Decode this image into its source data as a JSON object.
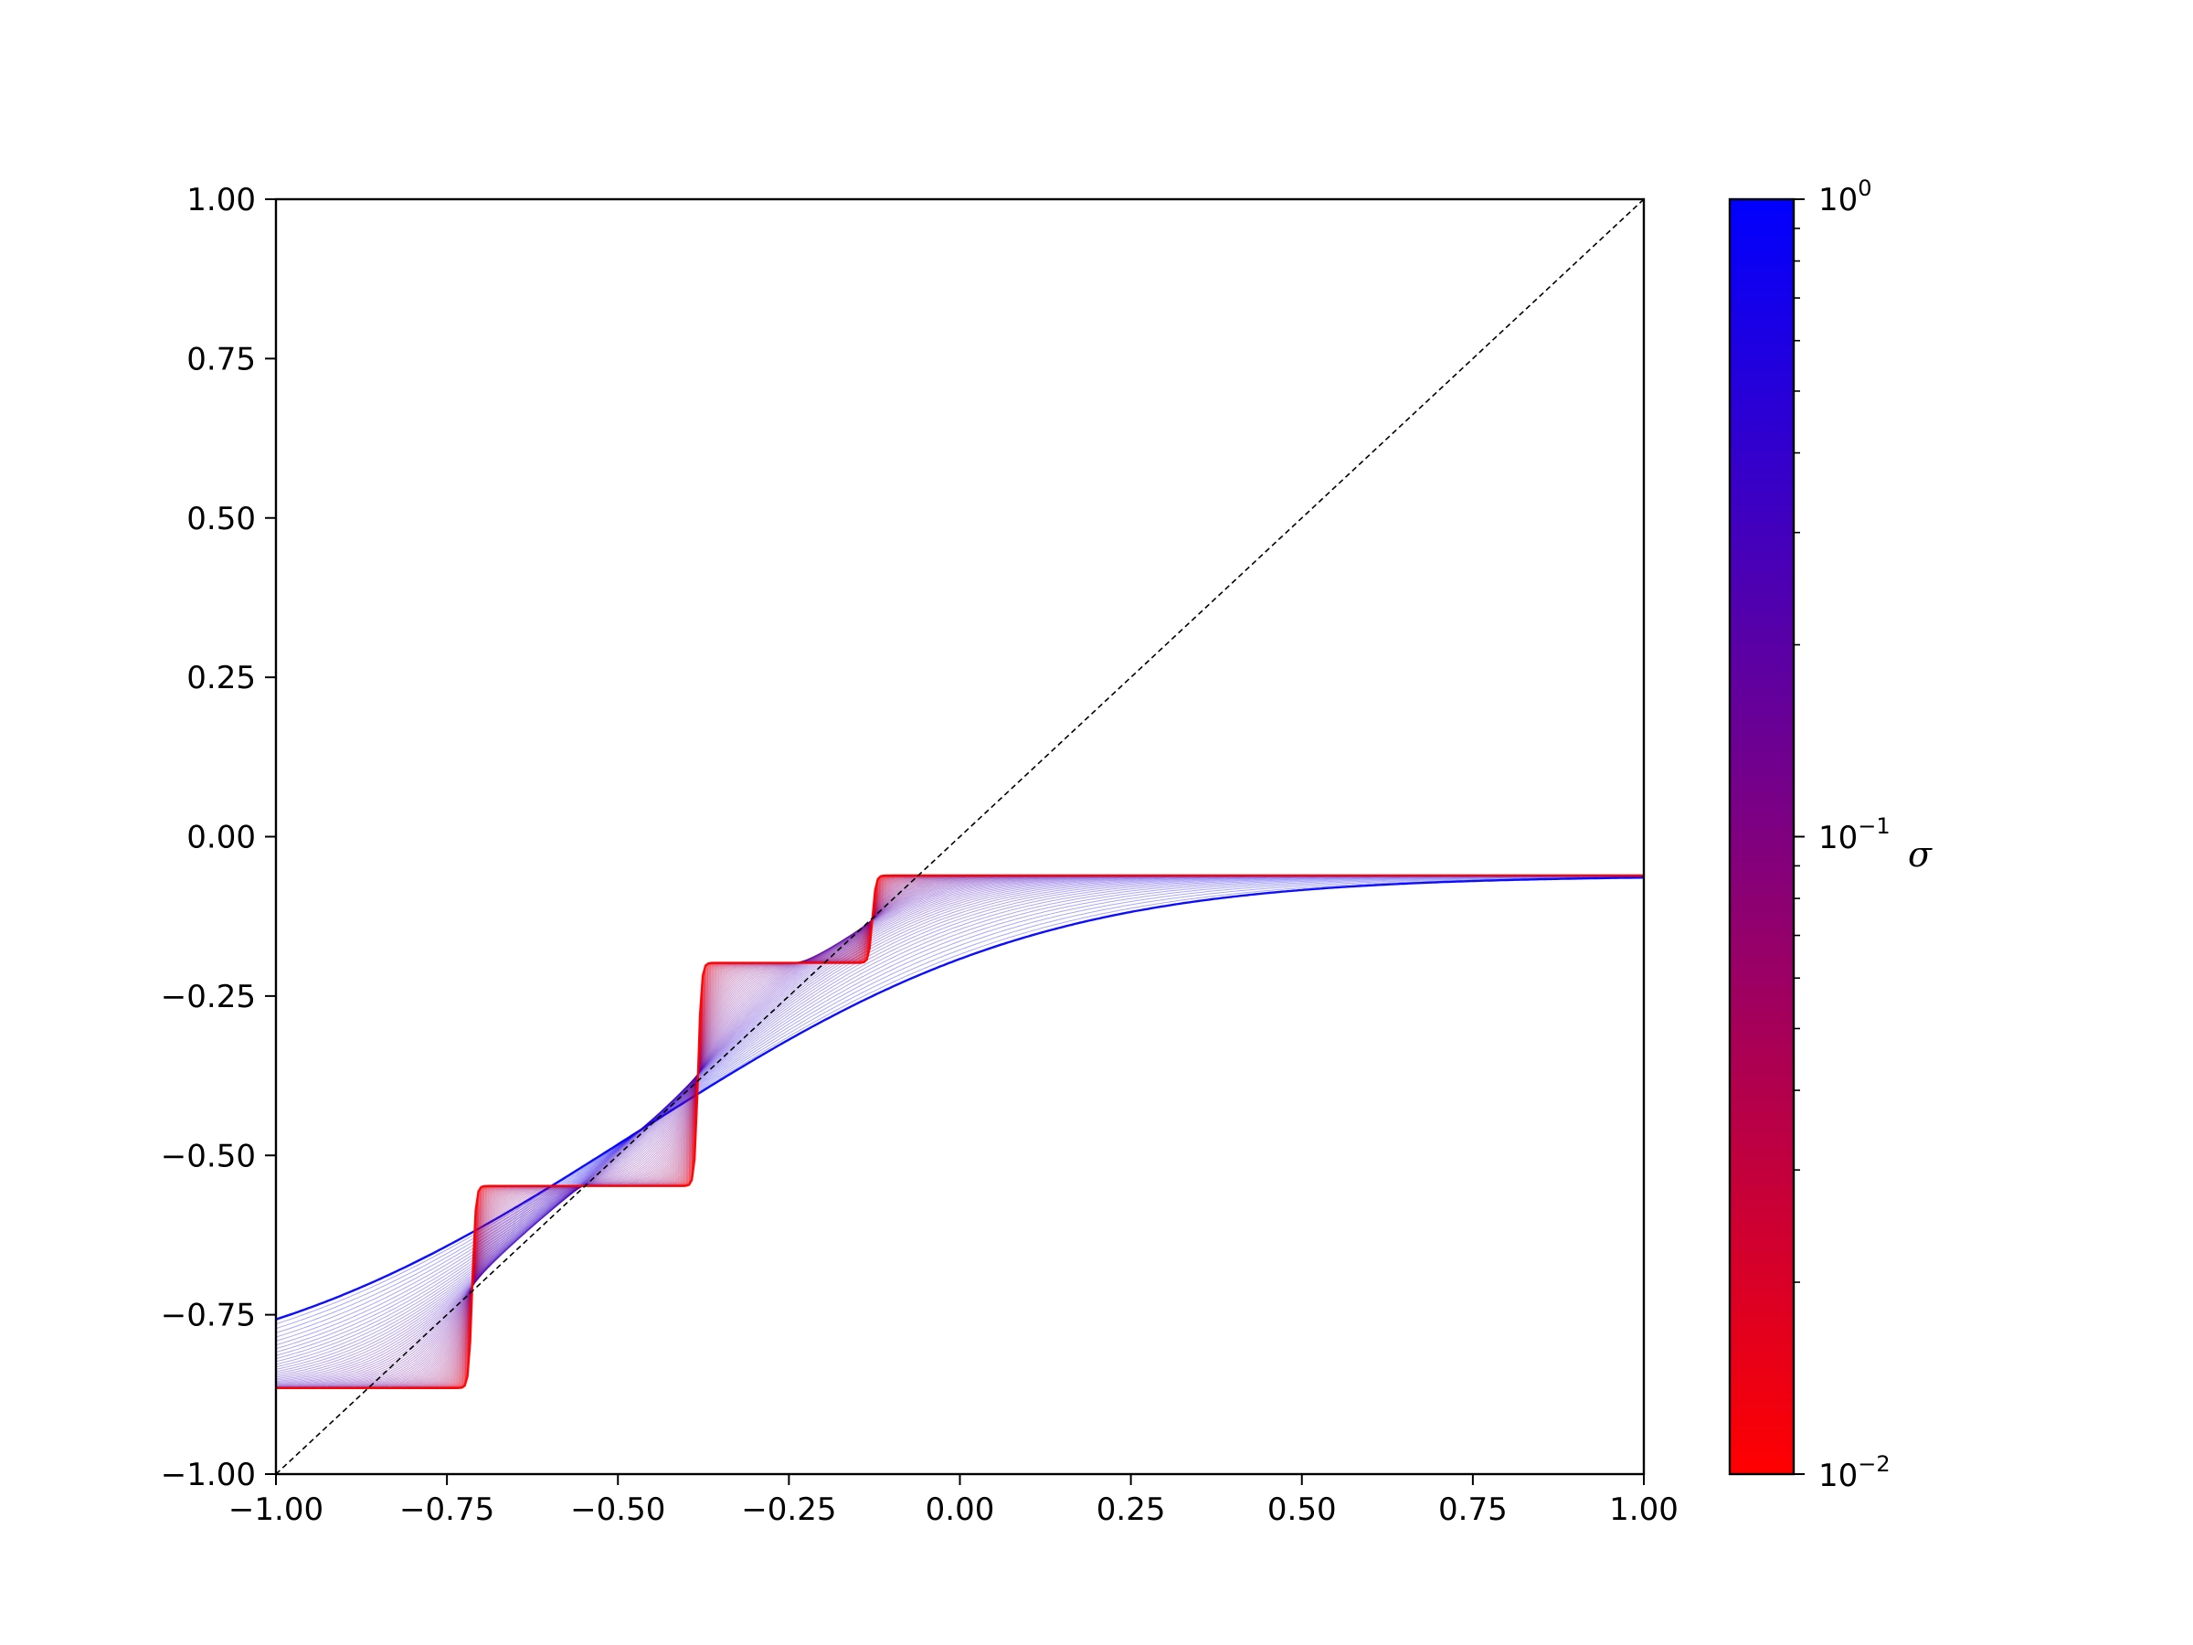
{
  "chart_data": {
    "type": "line",
    "xlim": [
      -1.0,
      1.0
    ],
    "ylim": [
      -1.0,
      1.0
    ],
    "grid": false,
    "x_ticks": [
      -1.0,
      -0.75,
      -0.5,
      -0.25,
      0.0,
      0.25,
      0.5,
      0.75,
      1.0
    ],
    "y_ticks": [
      -1.0,
      -0.75,
      -0.5,
      -0.25,
      0.0,
      0.25,
      0.5,
      0.75,
      1.0
    ],
    "x_tick_labels": [
      "−1.00",
      "−0.75",
      "−0.50",
      "−0.25",
      "0.00",
      "0.25",
      "0.50",
      "0.75",
      "1.00"
    ],
    "y_tick_labels": [
      "−1.00",
      "−0.75",
      "−0.50",
      "−0.25",
      "0.00",
      "0.25",
      "0.50",
      "0.75",
      "1.00"
    ],
    "identity_line": {
      "x": [
        -1.0,
        1.0
      ],
      "y": [
        -1.0,
        1.0
      ],
      "style": "dashed",
      "color": "#000000"
    },
    "step_function": {
      "thresholds": [
        -0.713,
        -0.383,
        -0.128
      ],
      "levels": [
        -0.865,
        -0.548,
        -0.198,
        -0.061
      ]
    },
    "sigma_range": [
      0.01,
      1.0
    ],
    "curve_count": 90,
    "colorbar": {
      "label": "σ",
      "scale": "log",
      "range": [
        0.01,
        1.0
      ],
      "tick_labels": [
        {
          "base": "10",
          "exp": "0"
        },
        {
          "base": "10",
          "exp": "−1"
        },
        {
          "base": "10",
          "exp": "−2"
        }
      ],
      "color_low": "#ff0000",
      "color_high": "#0000ff"
    }
  }
}
